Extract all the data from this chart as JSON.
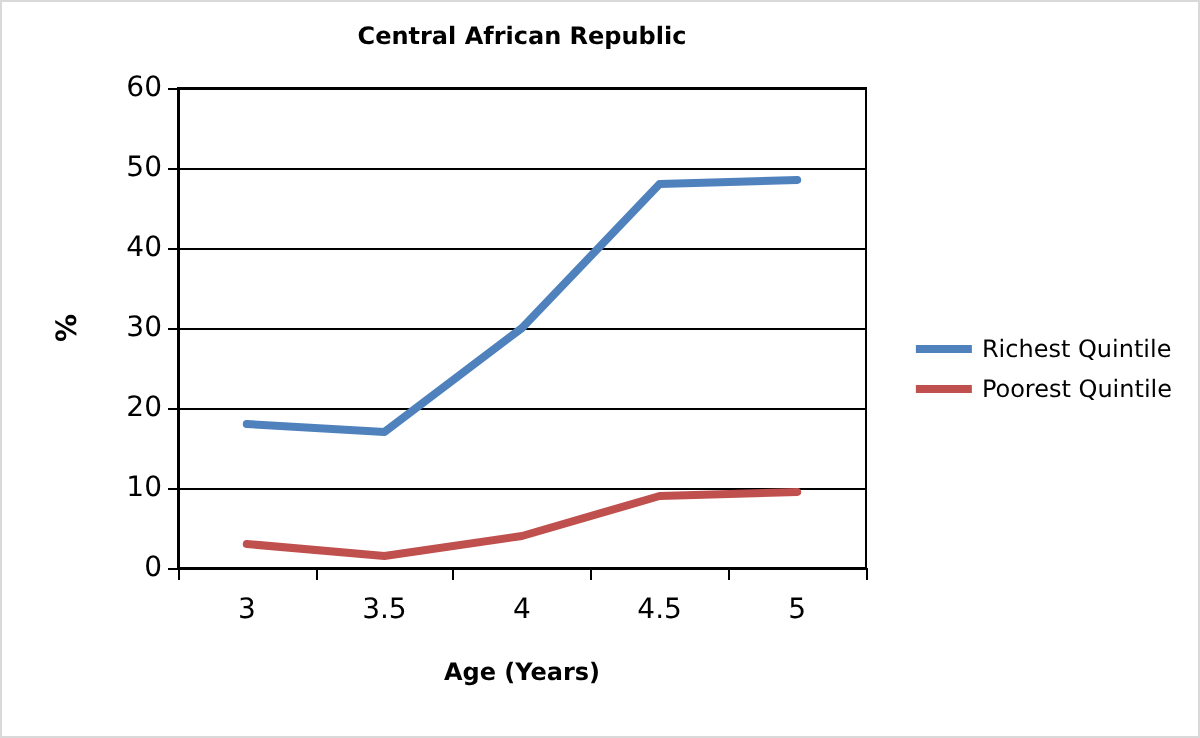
{
  "chart_data": {
    "type": "line",
    "title": "Central African Republic",
    "xlabel": "Age (Years)",
    "ylabel": "%",
    "categories": [
      "3",
      "3.5",
      "4",
      "4.5",
      "5"
    ],
    "series": [
      {
        "name": "Richest Quintile",
        "color": "#4f81bd",
        "values": [
          18,
          17,
          30,
          48,
          48.5
        ]
      },
      {
        "name": "Poorest Quintile",
        "color": "#c0504d",
        "values": [
          3,
          1.5,
          4,
          9,
          9.5
        ]
      }
    ],
    "ylim": [
      0,
      60
    ],
    "yticks": [
      0,
      10,
      20,
      30,
      40,
      50,
      60
    ],
    "grid": "y",
    "legend": "right",
    "marker": "none",
    "line_style": "solid"
  }
}
